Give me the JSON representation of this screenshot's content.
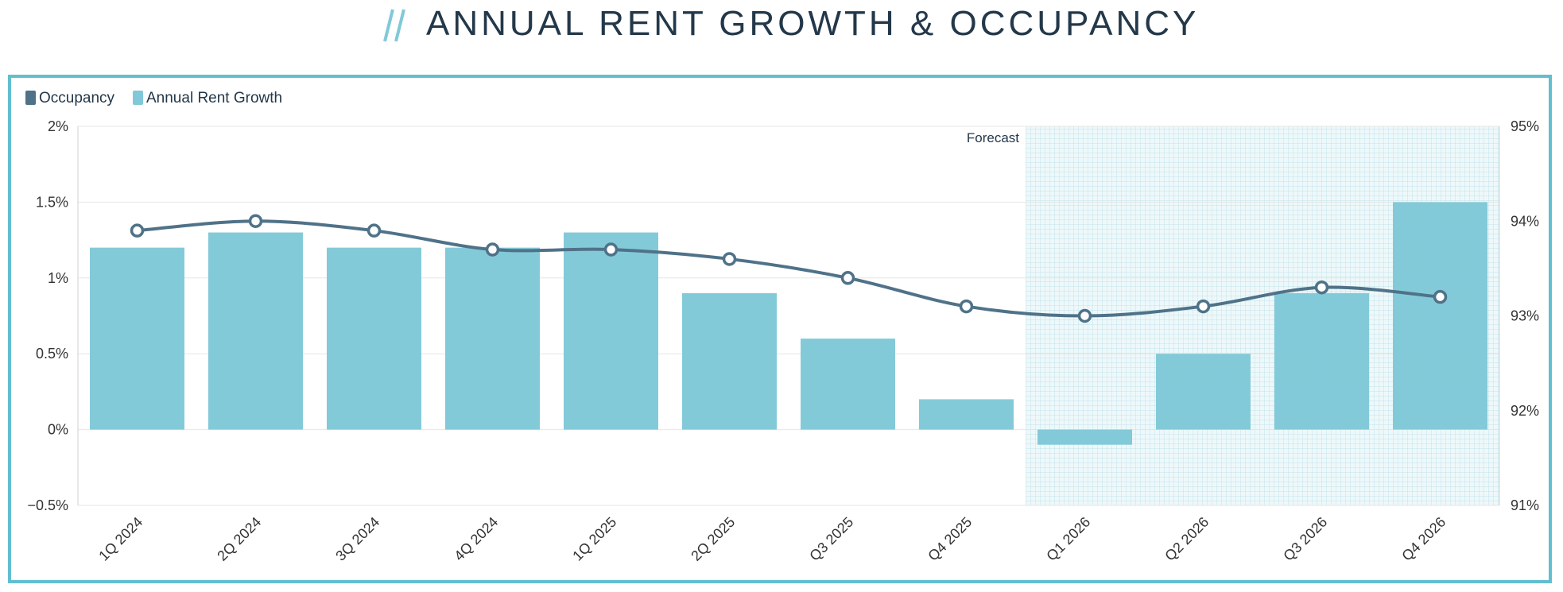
{
  "title": "ANNUAL RENT GROWTH & OCCUPANCY",
  "colors": {
    "occupancy": "#4f7288",
    "rent_growth": "#81c9d8",
    "frame": "#62bfd0",
    "title": "#23384a",
    "forecast_grid": "#b5e0e6"
  },
  "chart_data": {
    "type": "bar",
    "title": "ANNUAL RENT GROWTH & OCCUPANCY",
    "categories": [
      "1Q 2024",
      "2Q 2024",
      "3Q 2024",
      "4Q 2024",
      "1Q 2025",
      "2Q 2025",
      "Q3 2025",
      "Q4 2025",
      "Q1 2026",
      "Q2 2026",
      "Q3 2026",
      "Q4 2026"
    ],
    "series": [
      {
        "name": "Annual Rent Growth",
        "type": "bar",
        "axis": "left",
        "values": [
          1.2,
          1.3,
          1.2,
          1.2,
          1.3,
          0.9,
          0.6,
          0.2,
          -0.1,
          0.5,
          0.9,
          1.5
        ]
      },
      {
        "name": "Occupancy",
        "type": "line",
        "axis": "right",
        "values": [
          93.9,
          94.0,
          93.9,
          93.7,
          93.7,
          93.6,
          93.4,
          93.1,
          93.0,
          93.1,
          93.3,
          93.2
        ]
      }
    ],
    "legend": {
      "position": "top-left",
      "items": [
        "Occupancy",
        "Annual Rent Growth"
      ]
    },
    "left_axis": {
      "ylim": [
        -0.5,
        2
      ],
      "ticks": [
        2,
        1.5,
        1,
        0.5,
        0,
        -0.5
      ],
      "tick_labels": [
        "2%",
        "1.5%",
        "1%",
        "0.5%",
        "0%",
        "−0.5%"
      ]
    },
    "right_axis": {
      "ylim": [
        91,
        95
      ],
      "ticks": [
        95,
        94,
        93,
        92,
        91
      ],
      "tick_labels": [
        "95%",
        "94%",
        "93%",
        "92%",
        "91%"
      ]
    },
    "forecast": {
      "label": "Forecast",
      "start_category": "Q1 2026"
    },
    "grid": true
  }
}
